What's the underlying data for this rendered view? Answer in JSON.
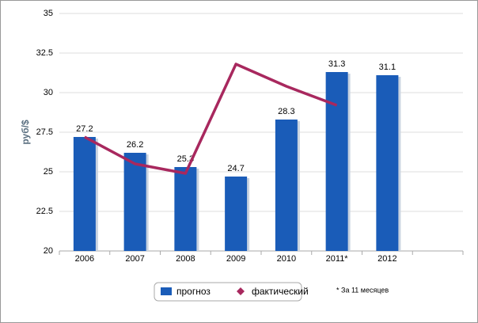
{
  "chart_data": {
    "type": "bar",
    "y_axis_label": "руб/$",
    "categories": [
      "2006",
      "2007",
      "2008",
      "2009",
      "2010",
      "2011*",
      "2012"
    ],
    "series": [
      {
        "name": "прогноз",
        "type": "bar",
        "color": "#1a5cb8",
        "values": [
          27.2,
          26.2,
          25.3,
          24.7,
          28.3,
          31.3,
          31.1
        ]
      },
      {
        "name": "фактический",
        "type": "line",
        "color": "#a8285e",
        "values": [
          27.2,
          25.5,
          24.9,
          31.8,
          30.4,
          29.2,
          null
        ]
      }
    ],
    "ylim": [
      20,
      35
    ],
    "yticks": [
      20,
      22.5,
      25,
      27.5,
      30,
      32.5,
      35
    ],
    "grid": true,
    "legend": "bottom",
    "note": "* За 11 месяцев"
  }
}
